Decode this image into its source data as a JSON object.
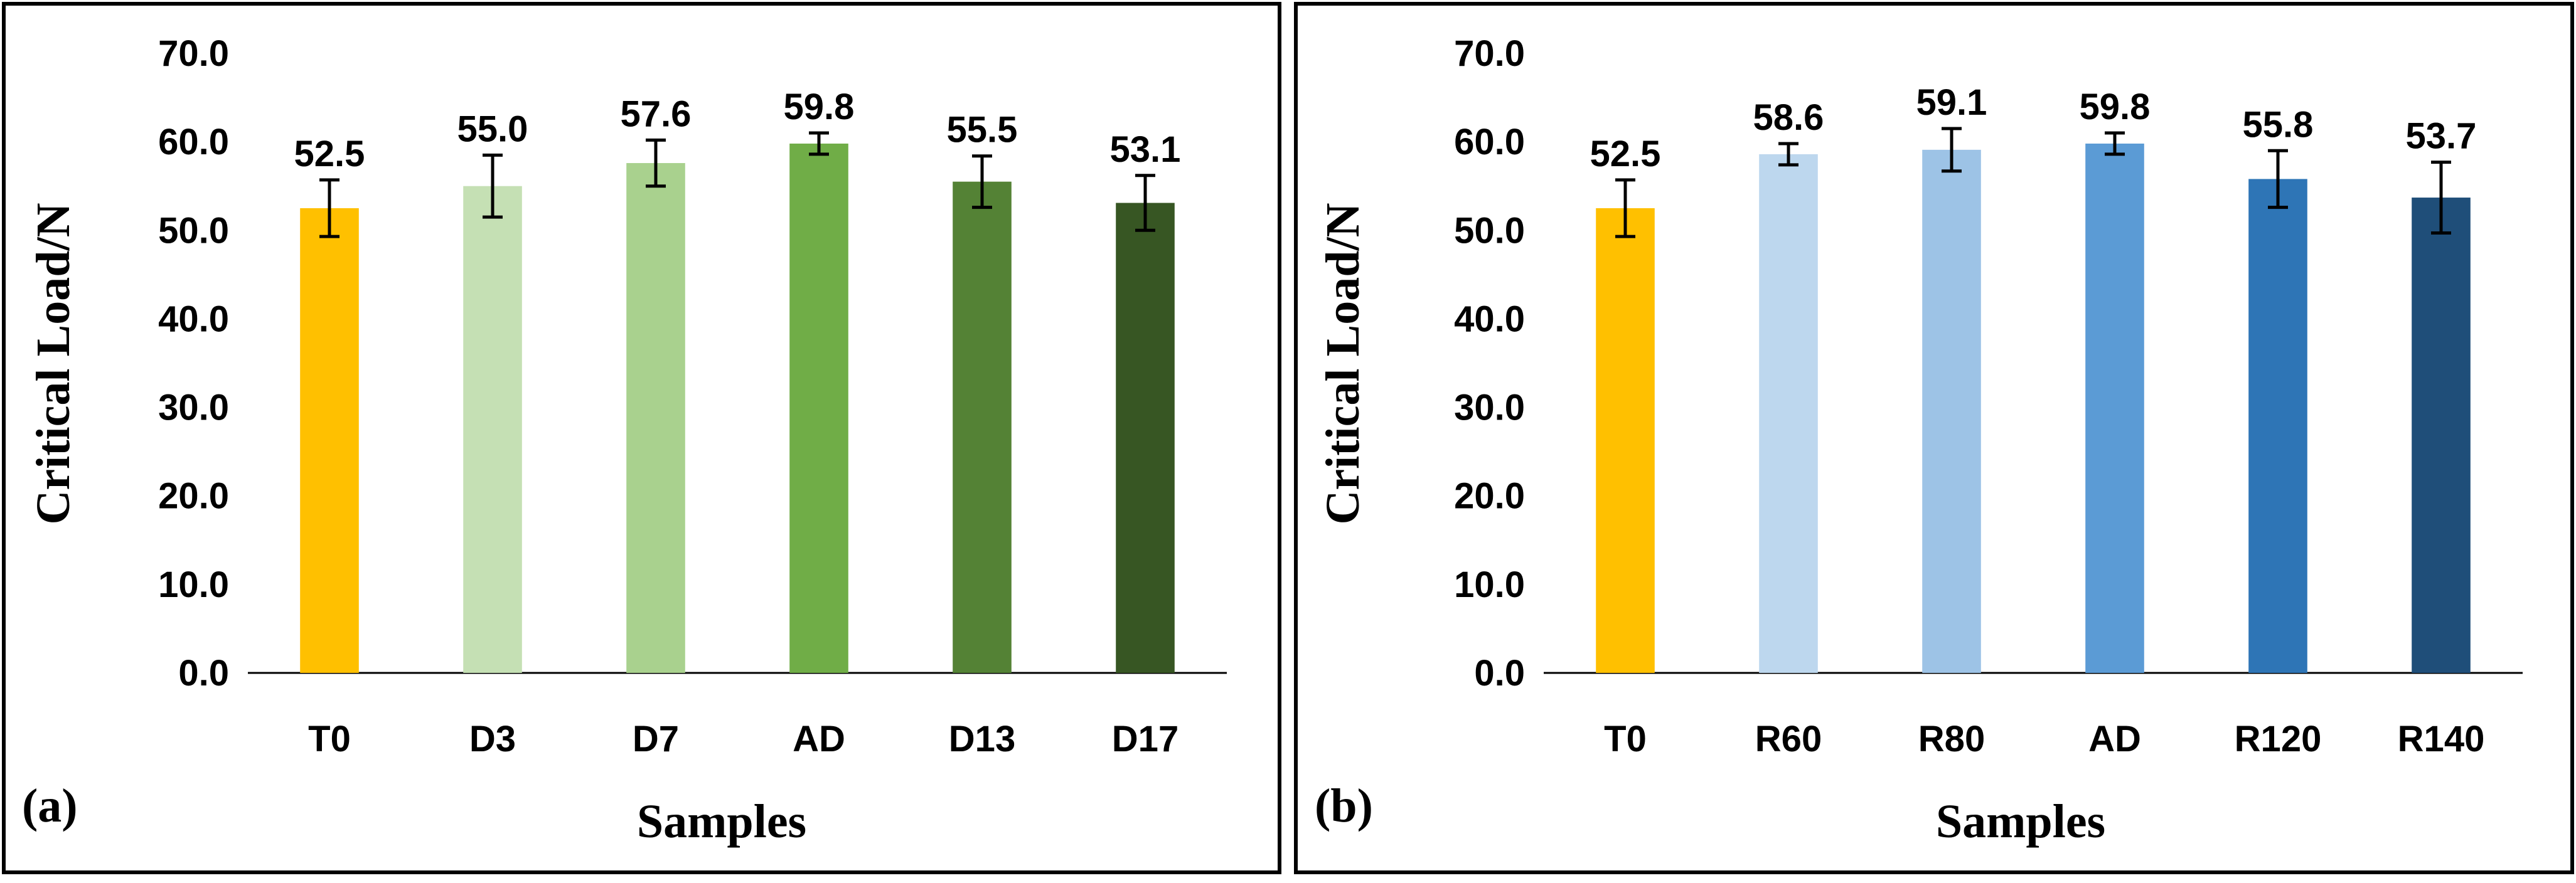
{
  "chart_data": [
    {
      "type": "bar",
      "panel_label": "(a)",
      "categories": [
        "T0",
        "D3",
        "D7",
        "AD",
        "D13",
        "D17"
      ],
      "values": [
        52.5,
        55.0,
        57.6,
        59.8,
        55.5,
        53.1
      ],
      "value_labels": [
        "52.5",
        "55.0",
        "57.6",
        "59.8",
        "55.5",
        "53.1"
      ],
      "errors": [
        3.2,
        3.5,
        2.6,
        1.2,
        2.9,
        3.1
      ],
      "colors": [
        "#FFC000",
        "#C5E0B4",
        "#A9D18E",
        "#70AD47",
        "#548235",
        "#375623"
      ],
      "title": "",
      "xlabel": "Samples",
      "ylabel": "Critical Load/N",
      "ylim": [
        0,
        70
      ],
      "yticks": [
        "0.0",
        "10.0",
        "20.0",
        "30.0",
        "40.0",
        "50.0",
        "60.0",
        "70.0"
      ],
      "grid": false,
      "legend": "none"
    },
    {
      "type": "bar",
      "panel_label": "(b)",
      "categories": [
        "T0",
        "R60",
        "R80",
        "AD",
        "R120",
        "R140"
      ],
      "values": [
        52.5,
        58.6,
        59.1,
        59.8,
        55.8,
        53.7
      ],
      "value_labels": [
        "52.5",
        "58.6",
        "59.1",
        "59.8",
        "55.8",
        "53.7"
      ],
      "errors": [
        3.2,
        1.2,
        2.4,
        1.2,
        3.2,
        4.0
      ],
      "colors": [
        "#FFC000",
        "#BDD7EE",
        "#9DC3E6",
        "#5B9BD5",
        "#2E75B6",
        "#1F4E79"
      ],
      "title": "",
      "xlabel": "Samples",
      "ylabel": "Critical Load/N",
      "ylim": [
        0,
        70
      ],
      "yticks": [
        "0.0",
        "10.0",
        "20.0",
        "30.0",
        "40.0",
        "50.0",
        "60.0",
        "70.0"
      ],
      "grid": false,
      "legend": "none"
    }
  ]
}
